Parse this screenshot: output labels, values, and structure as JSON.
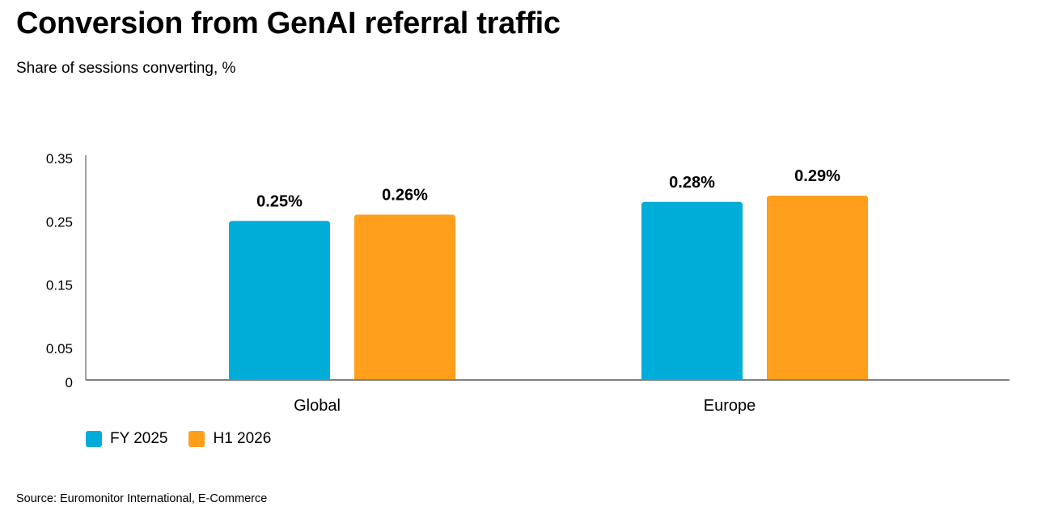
{
  "title": "Conversion from GenAI referral traffic",
  "subtitle": "Share of sessions converting, %",
  "source": "Source: Euromonitor International, E-Commerce",
  "colors": {
    "fy2025": "#00ADD8",
    "h12026": "#FF9F1C",
    "axis": "#808080"
  },
  "chart_data": {
    "type": "bar",
    "categories": [
      "Global",
      "Europe"
    ],
    "series": [
      {
        "name": "FY 2025",
        "values": [
          0.25,
          0.28
        ],
        "labels": [
          "0.25%",
          "0.28%"
        ]
      },
      {
        "name": "H1 2026",
        "values": [
          0.26,
          0.29
        ],
        "labels": [
          "0.26%",
          "0.29%"
        ]
      }
    ],
    "yticks": [
      "0",
      "0.05",
      "0.15",
      "0.25",
      "0.35"
    ],
    "ylim": [
      0,
      0.35
    ],
    "grid": false,
    "legend": "bottom-left"
  }
}
